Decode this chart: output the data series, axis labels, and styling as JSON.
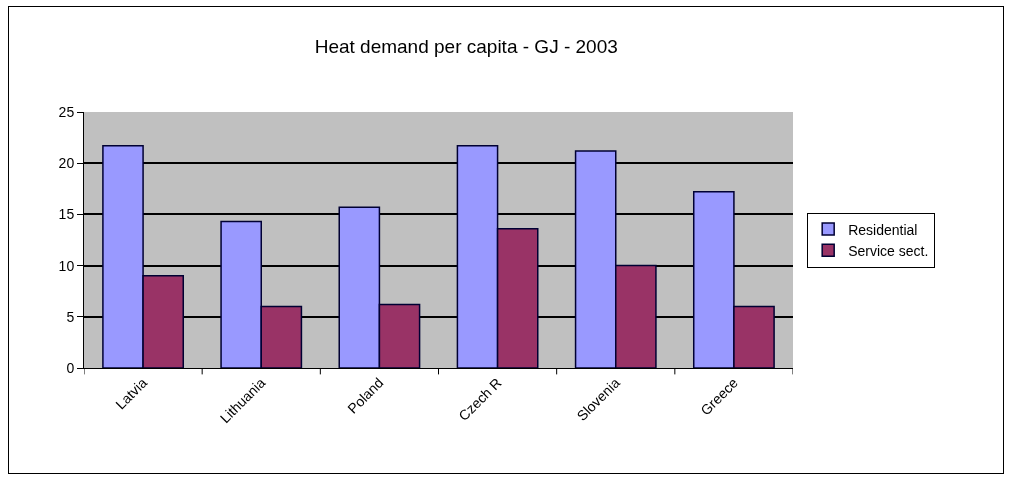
{
  "chart_data": {
    "type": "bar",
    "title": "Heat demand per capita - GJ - 2003",
    "categories": [
      "Latvia",
      "Lithuania",
      "Poland",
      "Czech R",
      "Slovenia",
      "Greece"
    ],
    "series": [
      {
        "name": "Residential",
        "color": "#9999ff",
        "values": [
          21.7,
          14.3,
          15.7,
          21.7,
          21.2,
          17.2
        ]
      },
      {
        "name": "Service sect.",
        "color": "#993366",
        "values": [
          9.0,
          6.0,
          6.2,
          13.6,
          10.0,
          6.0
        ]
      }
    ],
    "ylim": [
      0,
      25
    ],
    "yticks": [
      0,
      5,
      10,
      15,
      20,
      25
    ],
    "grid": "y",
    "legend": "right"
  }
}
